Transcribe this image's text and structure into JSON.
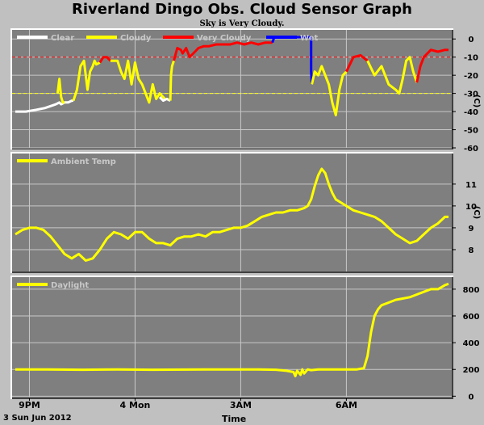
{
  "title": "Riverland Dingo Obs. Cloud Sensor Graph",
  "subtitle": "Sky is Very Cloudy.",
  "date_label": "3 Sun Jun 2012",
  "x_axis_label": "Time",
  "colors": {
    "background": "#c0c0c0",
    "plot_bg": "#7f7f7f",
    "grid": "#c8c8c8",
    "clear": "#ffffff",
    "cloudy": "#ffff00",
    "very_cloudy": "#ff0000",
    "wet": "#0000ff",
    "threshold_red": "#ff0000",
    "threshold_yellow": "#ffff00"
  },
  "chart_data": [
    {
      "type": "line",
      "name": "sky",
      "x_ticks": [
        {
          "hour": 21,
          "label": "9PM"
        },
        {
          "hour": 24,
          "label": "4 Mon"
        },
        {
          "hour": 27,
          "label": "3AM"
        },
        {
          "hour": 30,
          "label": "6AM"
        }
      ],
      "x_range": [
        20.6,
        32.9
      ],
      "ylim": [
        -60,
        5
      ],
      "yticks": [
        0,
        -10,
        -20,
        -30,
        -40,
        -50,
        -60
      ],
      "ylabel": "(C)",
      "thresholds": [
        {
          "value": -10,
          "color": "#ff0000"
        },
        {
          "value": -30,
          "color": "#ffff00"
        }
      ],
      "legend": [
        {
          "name": "Clear",
          "color": "#ffffff"
        },
        {
          "name": "Cloudy",
          "color": "#ffff00"
        },
        {
          "name": "Very Cloudy",
          "color": "#ff0000"
        },
        {
          "name": "Wet",
          "color": "#0000ff"
        }
      ],
      "series": [
        {
          "name": "Clear",
          "color": "#ffffff",
          "x": [
            20.6,
            20.9,
            21.2,
            21.45,
            21.6,
            21.75,
            21.85,
            21.9,
            22.0,
            22.1,
            22.2,
            22.25
          ],
          "y": [
            -40,
            -40,
            -39,
            -38,
            -37,
            -36,
            -35,
            -36,
            -35,
            -35,
            -34,
            -34
          ]
        },
        {
          "name": "Cloudy",
          "color": "#ffff00",
          "x": [
            21.8,
            21.85,
            21.9,
            21.95,
            22.0
          ],
          "y": [
            -30,
            -22,
            -32,
            -35,
            -35
          ]
        },
        {
          "name": "Cloudy",
          "color": "#ffff00",
          "x": [
            22.25,
            22.35,
            22.45,
            22.55,
            22.6,
            22.65,
            22.72,
            22.8,
            22.85,
            22.9,
            23.0
          ],
          "y": [
            -34,
            -28,
            -15,
            -12,
            -20,
            -28,
            -18,
            -15,
            -12,
            -14,
            -13
          ]
        },
        {
          "name": "Very Cloudy",
          "color": "#ff0000",
          "x": [
            23.0,
            23.1,
            23.2,
            23.3
          ],
          "y": [
            -13,
            -10,
            -10,
            -12
          ]
        },
        {
          "name": "Cloudy",
          "color": "#ffff00",
          "x": [
            23.3,
            23.5,
            23.6,
            23.7,
            23.8,
            23.9,
            24.0,
            24.1,
            24.2,
            24.3,
            24.4,
            24.5,
            24.6,
            24.7,
            24.85
          ],
          "y": [
            -12,
            -12,
            -18,
            -22,
            -12,
            -25,
            -13,
            -22,
            -25,
            -30,
            -35,
            -25,
            -33,
            -30,
            -33
          ]
        },
        {
          "name": "Clear",
          "color": "#ffffff",
          "x": [
            24.7,
            24.8,
            24.9,
            25.0
          ],
          "y": [
            -32,
            -34,
            -33,
            -34
          ]
        },
        {
          "name": "Cloudy",
          "color": "#ffff00",
          "x": [
            25.0,
            25.02,
            25.05,
            25.1
          ],
          "y": [
            -34,
            -20,
            -15,
            -12
          ]
        },
        {
          "name": "Very Cloudy",
          "color": "#ff0000",
          "x": [
            25.1,
            25.2,
            25.3,
            25.35,
            25.45,
            25.55,
            25.7,
            25.8,
            25.95,
            26.1,
            26.3,
            26.5,
            26.7,
            26.9,
            27.1,
            27.3,
            27.5,
            27.7,
            27.9
          ],
          "y": [
            -12,
            -5,
            -6,
            -8,
            -5,
            -10,
            -7,
            -5,
            -4,
            -4,
            -3,
            -3,
            -3,
            -2,
            -3,
            -2,
            -3,
            -2,
            -2
          ]
        },
        {
          "name": "Wet",
          "color": "#0000ff",
          "x": [
            27.9,
            27.95,
            28.0,
            28.3,
            28.6,
            28.9,
            29.0,
            29.0,
            29.02
          ],
          "y": [
            -2,
            1,
            1,
            1,
            1,
            1,
            1,
            -18,
            -25
          ]
        },
        {
          "name": "Cloudy",
          "color": "#ffff00",
          "x": [
            29.02,
            29.1,
            29.2,
            29.3,
            29.4,
            29.5,
            29.6,
            29.7,
            29.8,
            29.9,
            30.0
          ],
          "y": [
            -25,
            -18,
            -20,
            -15,
            -20,
            -25,
            -35,
            -42,
            -28,
            -20,
            -18
          ]
        },
        {
          "name": "Very Cloudy",
          "color": "#ff0000",
          "x": [
            30.0,
            30.2,
            30.4,
            30.6
          ],
          "y": [
            -18,
            -10,
            -9,
            -12
          ]
        },
        {
          "name": "Cloudy",
          "color": "#ffff00",
          "x": [
            30.6,
            30.8,
            31.0,
            31.2,
            31.4,
            31.5,
            31.6,
            31.7,
            31.8,
            31.9,
            32.0
          ],
          "y": [
            -12,
            -20,
            -15,
            -25,
            -28,
            -30,
            -22,
            -12,
            -10,
            -18,
            -24
          ]
        },
        {
          "name": "Very Cloudy",
          "color": "#ff0000",
          "x": [
            32.0,
            32.1,
            32.2,
            32.4,
            32.6,
            32.8,
            32.9
          ],
          "y": [
            -24,
            -15,
            -10,
            -6,
            -7,
            -6,
            -6
          ]
        }
      ]
    },
    {
      "type": "line",
      "name": "ambient",
      "x_range": [
        20.6,
        32.9
      ],
      "ylim": [
        7,
        12.4
      ],
      "yticks": [
        8,
        9,
        10,
        11
      ],
      "ylabel": "(C)",
      "legend": [
        {
          "name": "Ambient Temp",
          "color": "#ffff00"
        }
      ],
      "series": [
        {
          "name": "Ambient Temp",
          "color": "#ffff00",
          "x": [
            20.6,
            20.8,
            21.0,
            21.2,
            21.4,
            21.6,
            21.8,
            22.0,
            22.2,
            22.4,
            22.6,
            22.8,
            23.0,
            23.2,
            23.4,
            23.6,
            23.8,
            24.0,
            24.2,
            24.4,
            24.6,
            24.8,
            25.0,
            25.2,
            25.4,
            25.6,
            25.8,
            26.0,
            26.2,
            26.4,
            26.6,
            26.8,
            27.0,
            27.2,
            27.4,
            27.6,
            27.8,
            28.0,
            28.2,
            28.4,
            28.6,
            28.8,
            28.9,
            29.0,
            29.1,
            29.2,
            29.3,
            29.4,
            29.5,
            29.6,
            29.7,
            29.8,
            30.0,
            30.2,
            30.4,
            30.6,
            30.8,
            31.0,
            31.2,
            31.4,
            31.6,
            31.8,
            32.0,
            32.2,
            32.4,
            32.6,
            32.8,
            32.9
          ],
          "y": [
            8.7,
            8.9,
            9.0,
            9.0,
            8.9,
            8.6,
            8.2,
            7.8,
            7.6,
            7.8,
            7.5,
            7.6,
            8.0,
            8.5,
            8.8,
            8.7,
            8.5,
            8.8,
            8.8,
            8.5,
            8.3,
            8.3,
            8.2,
            8.5,
            8.6,
            8.6,
            8.7,
            8.6,
            8.8,
            8.8,
            8.9,
            9.0,
            9.0,
            9.1,
            9.3,
            9.5,
            9.6,
            9.7,
            9.7,
            9.8,
            9.8,
            9.9,
            10.0,
            10.3,
            10.9,
            11.4,
            11.7,
            11.5,
            11.0,
            10.6,
            10.3,
            10.2,
            10.0,
            9.8,
            9.7,
            9.6,
            9.5,
            9.3,
            9.0,
            8.7,
            8.5,
            8.3,
            8.4,
            8.7,
            9.0,
            9.2,
            9.5,
            9.5
          ]
        }
      ]
    },
    {
      "type": "line",
      "name": "daylight",
      "x_range": [
        20.6,
        32.9
      ],
      "ylim": [
        -10,
        890
      ],
      "yticks": [
        0,
        200,
        400,
        600,
        800
      ],
      "legend": [
        {
          "name": "Daylight",
          "color": "#ffff00"
        }
      ],
      "series": [
        {
          "name": "Daylight",
          "color": "#ffff00",
          "x": [
            20.6,
            21.5,
            22.5,
            23.5,
            24.5,
            25.5,
            26.5,
            27.5,
            28.0,
            28.3,
            28.5,
            28.55,
            28.6,
            28.7,
            28.75,
            28.8,
            28.9,
            29.0,
            29.2,
            29.5,
            30.0,
            30.3,
            30.5,
            30.6,
            30.7,
            30.8,
            30.9,
            31.0,
            31.2,
            31.4,
            31.6,
            31.8,
            32.0,
            32.2,
            32.4,
            32.6,
            32.8,
            32.9
          ],
          "y": [
            200,
            200,
            198,
            200,
            198,
            199,
            200,
            200,
            198,
            190,
            180,
            150,
            190,
            160,
            200,
            170,
            200,
            195,
            200,
            200,
            200,
            200,
            210,
            300,
            480,
            600,
            650,
            680,
            700,
            720,
            730,
            740,
            760,
            780,
            800,
            800,
            830,
            840
          ]
        }
      ]
    }
  ]
}
